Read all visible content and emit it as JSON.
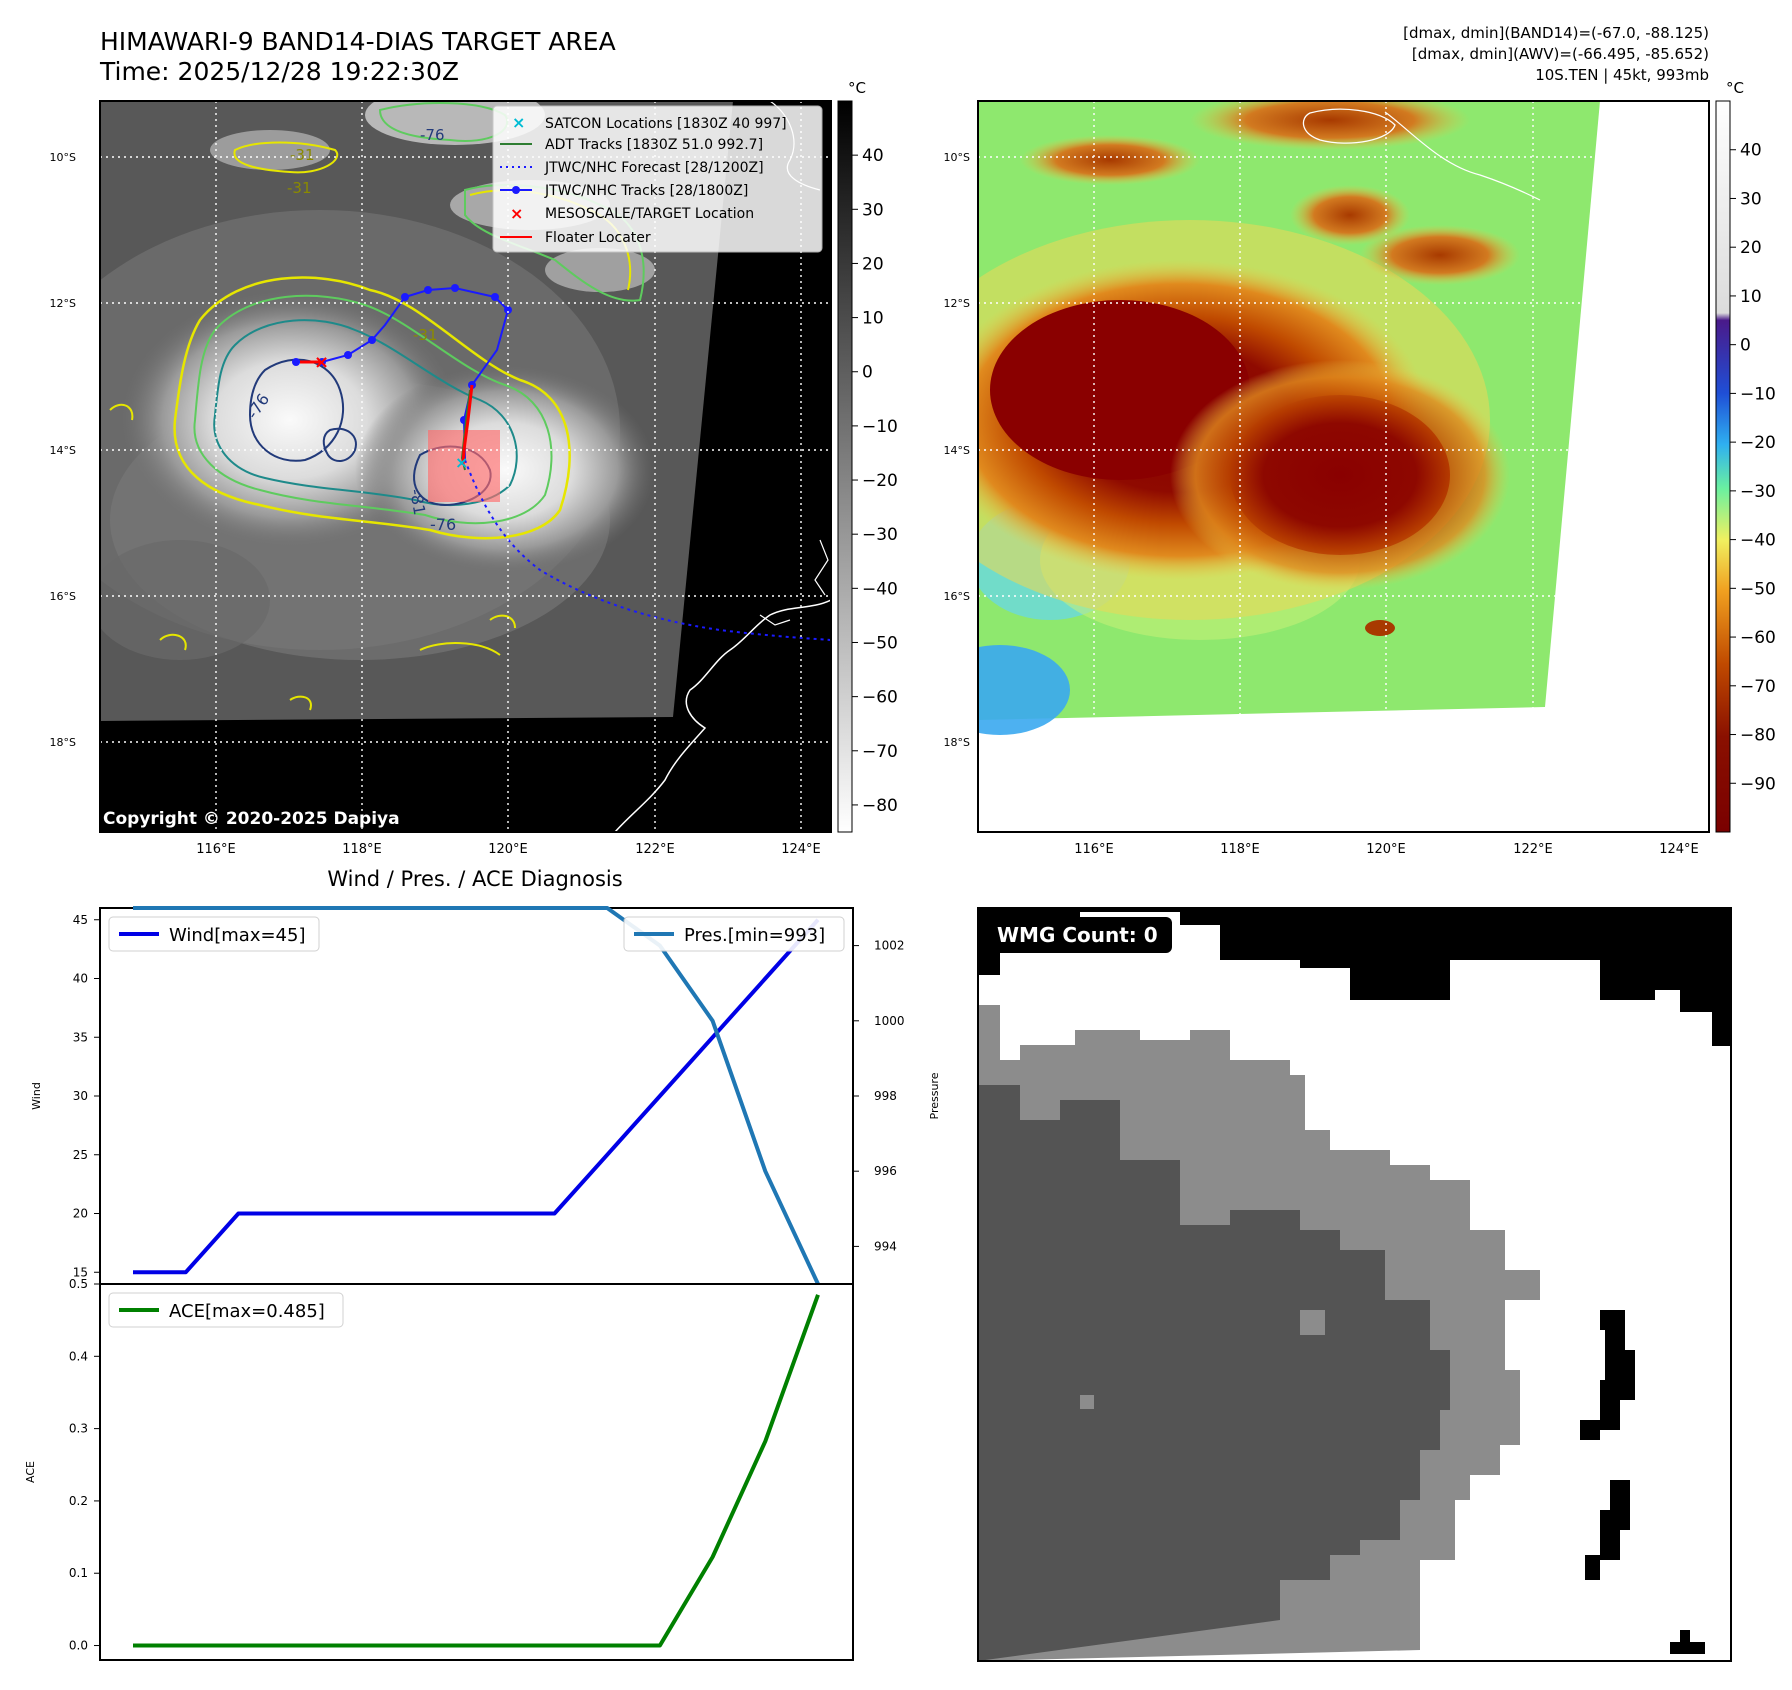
{
  "header": {
    "title_line1": "HIMAWARI-9 BAND14-DIAS TARGET AREA",
    "title_line2": "Time: 2025/12/28 19:22:30Z",
    "info_line1": "[dmax, dmin](BAND14)=(-67.0, -88.125)",
    "info_line2": "[dmax, dmin](AWV)=(-66.495, -85.652)",
    "info_line3": "10S.TEN | 45kt, 993mb"
  },
  "map_axes": {
    "lat_labels": [
      "10°S",
      "12°S",
      "14°S",
      "16°S",
      "18°S"
    ],
    "lon_labels": [
      "116°E",
      "118°E",
      "120°E",
      "122°E",
      "124°E"
    ],
    "copyright": "Copyright © 2020-2025 Dapiya",
    "contour_labels": [
      "-76",
      "-81",
      "-76",
      "-31",
      "-31",
      "-31",
      "-76"
    ]
  },
  "ir_colorbar": {
    "unit": "°C",
    "ticks": [
      "40",
      "30",
      "20",
      "10",
      "0",
      "−10",
      "−20",
      "−30",
      "−40",
      "−50",
      "−60",
      "−70",
      "−80"
    ]
  },
  "color_colorbar": {
    "unit": "°C",
    "ticks": [
      "40",
      "30",
      "20",
      "10",
      "0",
      "−10",
      "−20",
      "−30",
      "−40",
      "−50",
      "−60",
      "−70",
      "−80",
      "−90"
    ]
  },
  "legend": {
    "items": [
      {
        "label": "SATCON Locations [1830Z 40 997]",
        "color": "#00bcd4",
        "marker": "x"
      },
      {
        "label": "ADT Tracks [1830Z 51.0 992.7]",
        "color": "#2e7d32",
        "marker": "line"
      },
      {
        "label": "JTWC/NHC Forecast [28/1200Z]",
        "color": "#1a1aff",
        "marker": "dotted"
      },
      {
        "label": "JTWC/NHC Tracks [28/1800Z]",
        "color": "#1a1aff",
        "marker": "line-dot"
      },
      {
        "label": "MESOSCALE/TARGET Location",
        "color": "#ff0000",
        "marker": "x"
      },
      {
        "label": "Floater Locater",
        "color": "#ff0000",
        "marker": "line"
      }
    ]
  },
  "diagnosis": {
    "title": "Wind / Pres. / ACE Diagnosis",
    "wind_ylabel": "Wind",
    "pres_ylabel": "Pressure",
    "ace_ylabel": "ACE",
    "wind_legend": "Wind[max=45]",
    "pres_legend": "Pres.[min=993]",
    "ace_legend": "ACE[max=0.485]",
    "wind_ticks": [
      "45",
      "40",
      "35",
      "30",
      "25",
      "20",
      "15"
    ],
    "pres_ticks": [
      "1002",
      "1000",
      "998",
      "996",
      "994"
    ],
    "ace_ticks": [
      "0.5",
      "0.4",
      "0.3",
      "0.2",
      "0.1",
      "0.0"
    ]
  },
  "wmg": {
    "label": "WMG Count: 0"
  },
  "colors": {
    "wind": "#0000e6",
    "pressure": "#1f77b4",
    "ace": "#008000"
  },
  "chart_data": [
    {
      "type": "line",
      "title": "Wind / Pres. / ACE Diagnosis",
      "xlabel": "",
      "ylabel": "Wind",
      "ylim": [
        14,
        46
      ],
      "x": [
        0,
        1,
        2,
        3,
        4,
        5,
        6,
        7,
        8,
        9,
        10,
        11,
        12,
        13
      ],
      "series": [
        {
          "name": "Wind[max=45]",
          "values": [
            15,
            15,
            20,
            20,
            20,
            20,
            20,
            20,
            20,
            25,
            30,
            35,
            40,
            45
          ]
        }
      ]
    },
    {
      "type": "line",
      "xlabel": "",
      "ylabel": "Pressure",
      "ylim": [
        993,
        1003
      ],
      "x": [
        0,
        1,
        2,
        3,
        4,
        5,
        6,
        7,
        8,
        9,
        10,
        11,
        12,
        13
      ],
      "series": [
        {
          "name": "Pres.[min=993]",
          "values": [
            1003,
            1003,
            1003,
            1003,
            1003,
            1003,
            1003,
            1003,
            1003,
            1003,
            1002,
            1000,
            996,
            993
          ]
        }
      ]
    },
    {
      "type": "line",
      "xlabel": "",
      "ylabel": "ACE",
      "ylim": [
        -0.02,
        0.5
      ],
      "x": [
        0,
        1,
        2,
        3,
        4,
        5,
        6,
        7,
        8,
        9,
        10,
        11,
        12,
        13
      ],
      "series": [
        {
          "name": "ACE[max=0.485]",
          "values": [
            0,
            0,
            0,
            0,
            0,
            0,
            0,
            0,
            0,
            0,
            0,
            0.1225,
            0.2825,
            0.485
          ]
        }
      ]
    }
  ]
}
